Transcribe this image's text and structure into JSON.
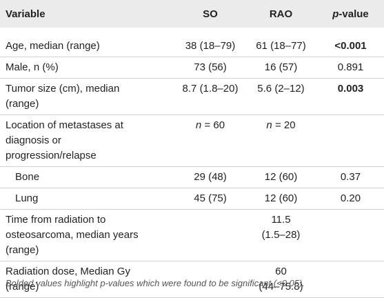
{
  "header": [
    "Variable",
    "SO",
    "RAO",
    [
      "p",
      "-value"
    ]
  ],
  "rows": [
    {
      "label": "Age, median (range)",
      "so": "38 (18–79)",
      "rao": "61 (18–77)",
      "p": "<0.001",
      "p_bold": true
    },
    {
      "label": "Male, n (%)",
      "so": "73 (56)",
      "rao": "16 (57)",
      "p": "0.891"
    },
    {
      "label": "Tumor size (cm), median (range)",
      "so": "8.7 (1.8–20)",
      "rao": "5.6 (2–12)",
      "p": "0.003",
      "p_bold": true
    },
    {
      "label": "Location of metastases at diagnosis or progression/relapse",
      "so": [
        "n",
        "= 60"
      ],
      "rao": [
        "n",
        "= 20"
      ]
    },
    {
      "label": "Bone",
      "so": "29 (48)",
      "rao": "12 (60)",
      "p": "0.37",
      "indent": true
    },
    {
      "label": "Lung",
      "so": "45 (75)",
      "rao": "12 (60)",
      "p": "0.20",
      "indent": true
    },
    {
      "label": "Time from radiation to osteosarcoma, median years (range)",
      "rao_lines": [
        "11.5",
        "(1.5–28)"
      ]
    },
    {
      "label": "Radiation dose, Median Gy (range)",
      "rao_lines": [
        "60",
        "(44–75.8)"
      ]
    }
  ],
  "footnote": "Bolded values highlight p-values which were found to be significant (<0.05)."
}
